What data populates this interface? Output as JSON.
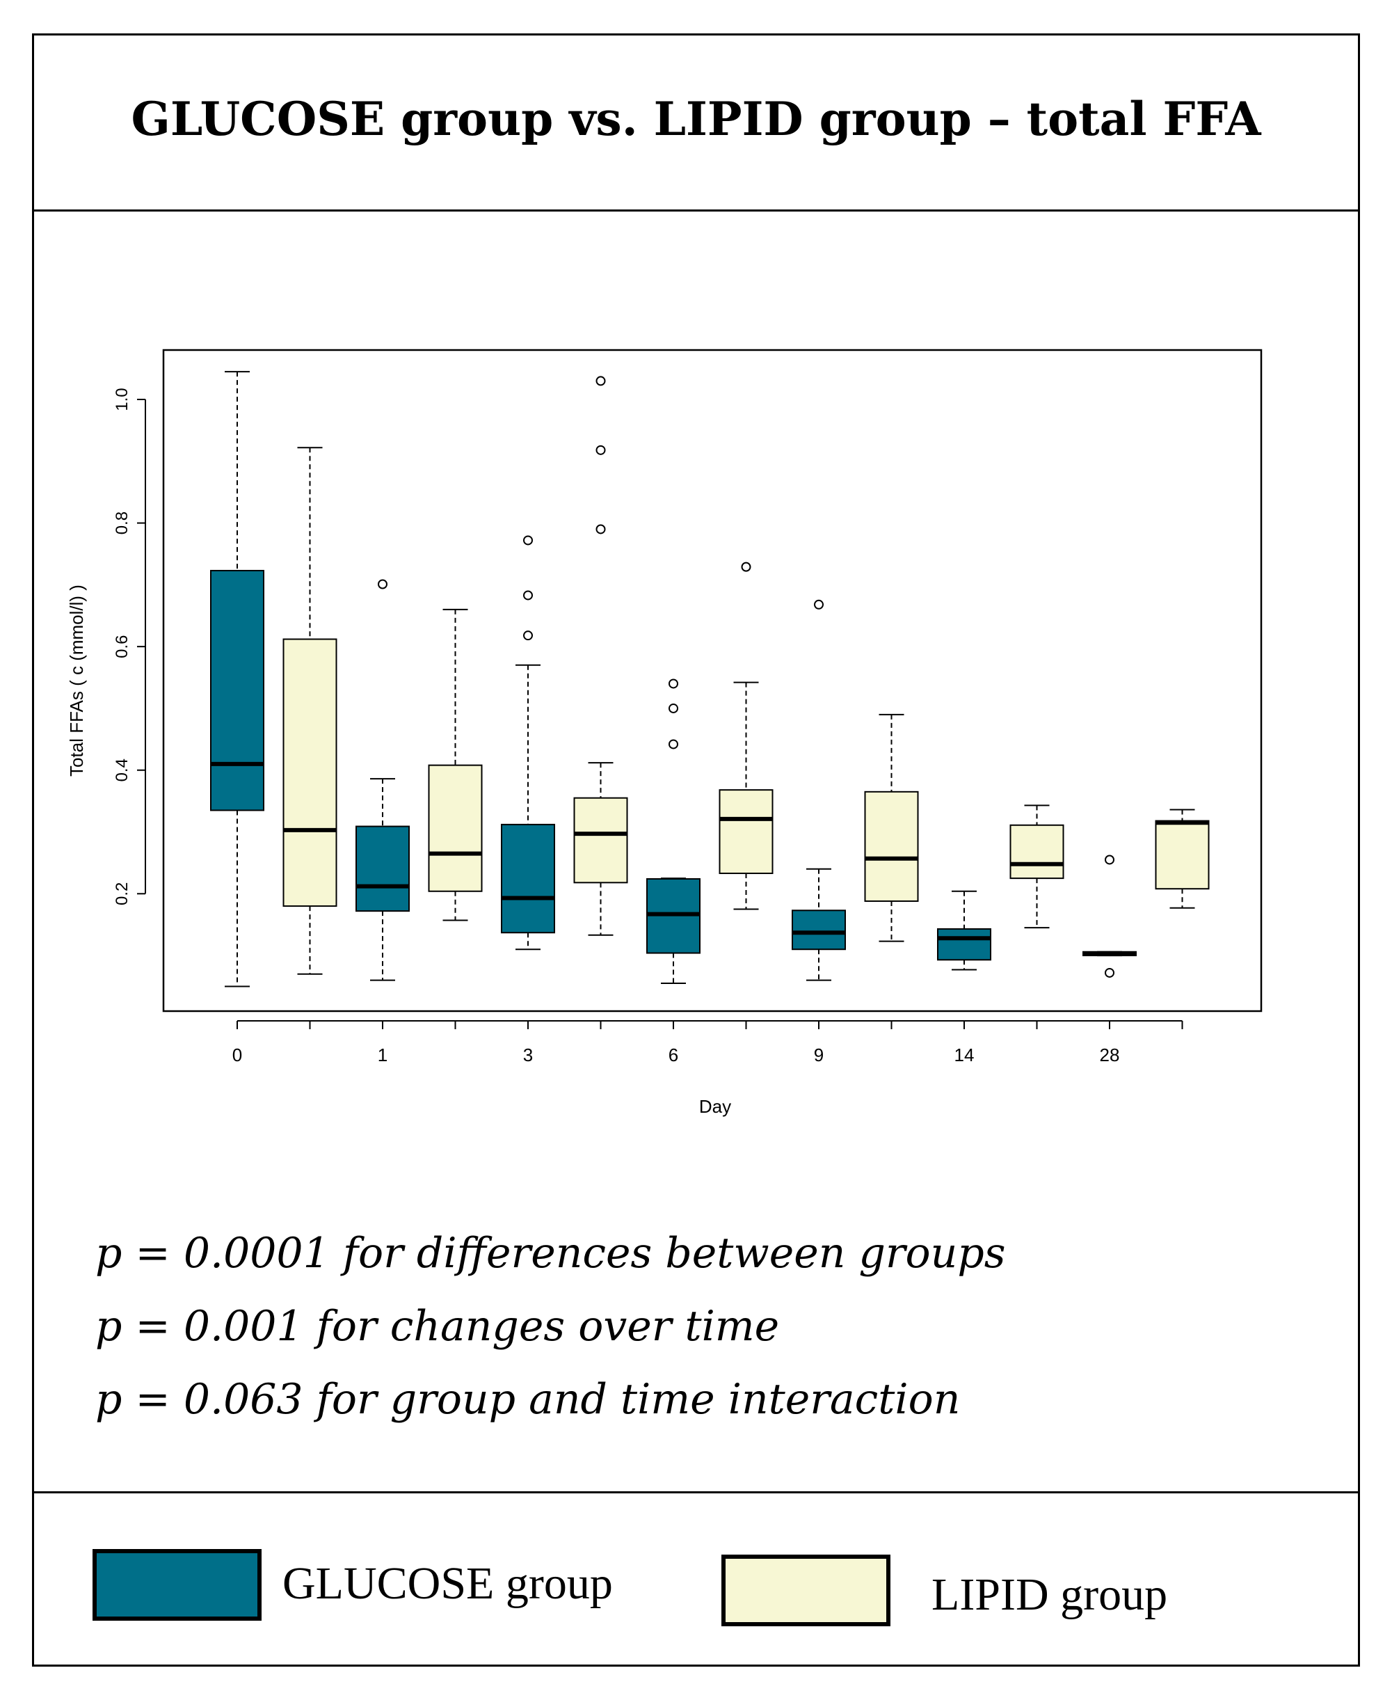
{
  "colors": {
    "glucose": "#006f89",
    "lipid": "#f7f7d4",
    "border": "#000000"
  },
  "header": {
    "title": "GLUCOSE group vs. LIPID group – total FFA"
  },
  "chart_data": {
    "type": "boxplot",
    "title": "",
    "xlabel": "Day",
    "ylabel": "Total FFAs ( c (mmol/l) )",
    "ylim": [
      0.01,
      1.08
    ],
    "y_ticks": [
      0.2,
      0.4,
      0.6,
      0.8,
      1.0
    ],
    "y_tick_labels": [
      "0.2",
      "0.4",
      "0.6",
      "0.8",
      "1.0"
    ],
    "categories": [
      "0",
      "1",
      "3",
      "6",
      "9",
      "14",
      "28"
    ],
    "x_tick_labels": [
      "0",
      "",
      "1",
      "",
      "3",
      "",
      "6",
      "",
      "9",
      "",
      "14",
      "",
      "28",
      ""
    ],
    "series": [
      {
        "name": "GLUCOSE group",
        "boxes": [
          {
            "day": "0",
            "whisker_low": 0.05,
            "q1": 0.335,
            "median": 0.41,
            "q3": 0.723,
            "whisker_high": 1.045,
            "outliers": []
          },
          {
            "day": "1",
            "whisker_low": 0.06,
            "q1": 0.172,
            "median": 0.212,
            "q3": 0.309,
            "whisker_high": 0.386,
            "outliers": [
              0.701
            ]
          },
          {
            "day": "3",
            "whisker_low": 0.11,
            "q1": 0.137,
            "median": 0.193,
            "q3": 0.312,
            "whisker_high": 0.57,
            "outliers": [
              0.618,
              0.683,
              0.772
            ]
          },
          {
            "day": "6",
            "whisker_low": 0.055,
            "q1": 0.104,
            "median": 0.167,
            "q3": 0.224,
            "whisker_high": 0.225,
            "outliers": [
              0.442,
              0.5,
              0.54
            ]
          },
          {
            "day": "9",
            "whisker_low": 0.06,
            "q1": 0.11,
            "median": 0.137,
            "q3": 0.173,
            "whisker_high": 0.24,
            "outliers": [
              0.668
            ]
          },
          {
            "day": "14",
            "whisker_low": 0.077,
            "q1": 0.093,
            "median": 0.128,
            "q3": 0.143,
            "whisker_high": 0.204,
            "outliers": []
          },
          {
            "day": "28",
            "whisker_low": 0.1,
            "q1": 0.1,
            "median": 0.103,
            "q3": 0.106,
            "whisker_high": 0.106,
            "outliers": [
              0.255,
              0.072
            ]
          }
        ]
      },
      {
        "name": "LIPID group",
        "boxes": [
          {
            "day": "0",
            "whisker_low": 0.07,
            "q1": 0.18,
            "median": 0.303,
            "q3": 0.612,
            "whisker_high": 0.922,
            "outliers": []
          },
          {
            "day": "1",
            "whisker_low": 0.157,
            "q1": 0.204,
            "median": 0.265,
            "q3": 0.408,
            "whisker_high": 0.66,
            "outliers": []
          },
          {
            "day": "3",
            "whisker_low": 0.133,
            "q1": 0.218,
            "median": 0.297,
            "q3": 0.355,
            "whisker_high": 0.412,
            "outliers": [
              0.79,
              0.918,
              1.03
            ]
          },
          {
            "day": "6",
            "whisker_low": 0.175,
            "q1": 0.233,
            "median": 0.321,
            "q3": 0.368,
            "whisker_high": 0.542,
            "outliers": [
              0.729
            ]
          },
          {
            "day": "9",
            "whisker_low": 0.123,
            "q1": 0.188,
            "median": 0.257,
            "q3": 0.365,
            "whisker_high": 0.49,
            "outliers": []
          },
          {
            "day": "14",
            "whisker_low": 0.145,
            "q1": 0.225,
            "median": 0.248,
            "q3": 0.311,
            "whisker_high": 0.343,
            "outliers": []
          },
          {
            "day": "28",
            "whisker_low": 0.177,
            "q1": 0.208,
            "median": 0.315,
            "q3": 0.318,
            "whisker_high": 0.336,
            "outliers": []
          }
        ]
      }
    ],
    "grid": false,
    "legend": "bottom"
  },
  "stats": [
    "p = 0.0001 for differences between groups",
    "p = 0.001 for changes over time",
    "p = 0.063 for group and time interaction"
  ],
  "legend": {
    "glucose_label": "GLUCOSE group",
    "lipid_label": "LIPID group"
  }
}
